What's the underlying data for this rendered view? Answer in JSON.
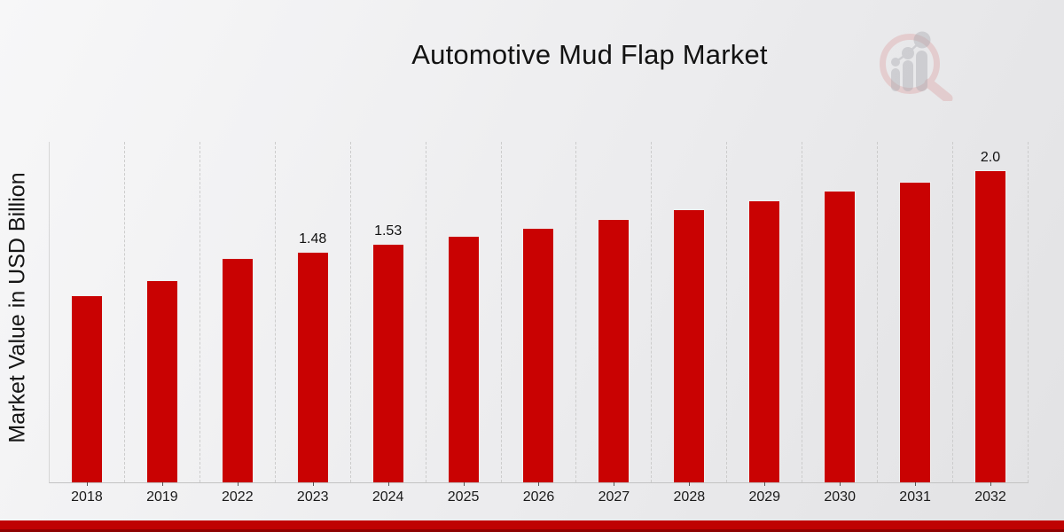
{
  "header": {
    "title": "Automotive Mud Flap Market"
  },
  "watermark": {
    "name": "magnifier-bar-chart-logo",
    "ring_color": "#d98f8f",
    "glyph_color": "#a9aab0"
  },
  "chart_data": {
    "type": "bar",
    "title": "Automotive Mud Flap Market",
    "xlabel": "",
    "ylabel": "Market Value in USD Billion",
    "categories": [
      "2018",
      "2019",
      "2022",
      "2023",
      "2024",
      "2025",
      "2026",
      "2027",
      "2028",
      "2029",
      "2030",
      "2031",
      "2032"
    ],
    "values": [
      1.2,
      1.3,
      1.44,
      1.48,
      1.53,
      1.58,
      1.63,
      1.69,
      1.75,
      1.81,
      1.87,
      1.93,
      2.0
    ],
    "bar_labels": [
      "",
      "",
      "",
      "1.48",
      "1.53",
      "",
      "",
      "",
      "",
      "",
      "",
      "",
      "2.0"
    ],
    "bar_color": "#c90202",
    "ylim": [
      0,
      2.19
    ],
    "grid": "vertical-dashed",
    "legend": "none"
  },
  "footer": {
    "band_color": "#bf0202",
    "band_edge_color": "#8e0101"
  }
}
